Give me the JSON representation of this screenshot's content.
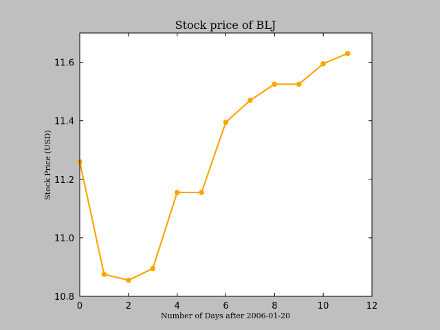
{
  "chart_data": {
    "type": "line",
    "title": "Stock price of BLJ",
    "xlabel": "Number of Days after 2006-01-20",
    "ylabel": "Stock Price (USD)",
    "xlim": [
      0,
      12
    ],
    "ylim": [
      10.8,
      11.7
    ],
    "xticks": [
      "0",
      "2",
      "4",
      "6",
      "8",
      "10",
      "12"
    ],
    "yticks": [
      "10.8",
      "11.0",
      "11.2",
      "11.4",
      "11.6"
    ],
    "grid": false,
    "series": [
      {
        "color": "#ffa500",
        "x": [
          0,
          1,
          2,
          3,
          4,
          5,
          6,
          7,
          8,
          9,
          10,
          11
        ],
        "y": [
          11.26,
          10.875,
          10.855,
          10.895,
          11.155,
          11.155,
          11.395,
          11.47,
          11.525,
          11.525,
          11.595,
          11.63
        ]
      }
    ]
  }
}
